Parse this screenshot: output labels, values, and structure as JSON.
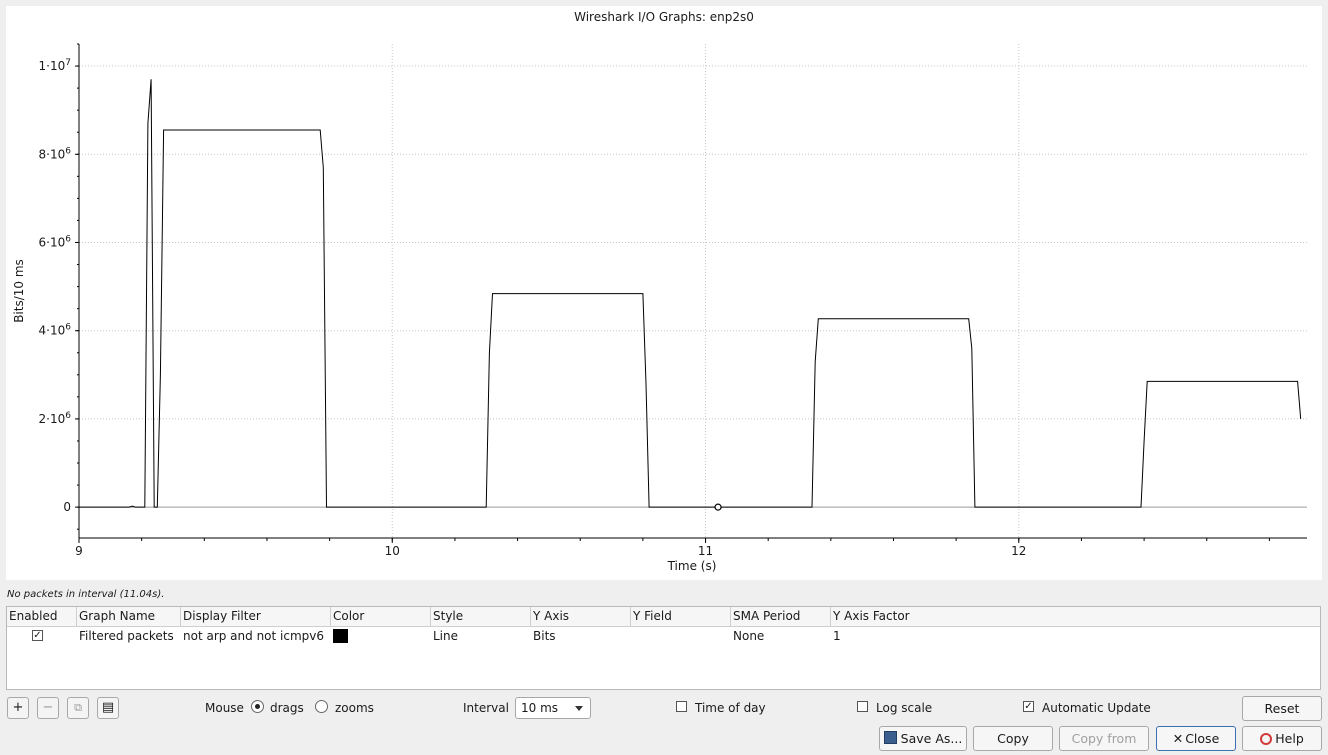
{
  "window": {
    "title": "Wireshark I/O Graphs: enp2s0"
  },
  "chart_data": {
    "type": "line",
    "title": "Wireshark I/O Graphs: enp2s0",
    "xlabel": "Time (s)",
    "ylabel": "Bits/10 ms",
    "xlim": [
      9.0,
      12.92
    ],
    "ylim": [
      -700000,
      10500000
    ],
    "x_ticks": [
      9,
      10,
      11,
      12
    ],
    "x_tick_labels": [
      "9",
      "10",
      "11",
      "12"
    ],
    "y_ticks": [
      0,
      2000000,
      4000000,
      6000000,
      8000000,
      10000000
    ],
    "y_tick_labels": [
      {
        "base": "0",
        "exp": ""
      },
      {
        "base": "2·10",
        "exp": "6"
      },
      {
        "base": "4·10",
        "exp": "6"
      },
      {
        "base": "6·10",
        "exp": "6"
      },
      {
        "base": "8·10",
        "exp": "6"
      },
      {
        "base": "1·10",
        "exp": "7"
      }
    ],
    "grid": true,
    "series": [
      {
        "name": "Filtered packets",
        "color": "#000000",
        "x": [
          9.0,
          9.16,
          9.17,
          9.18,
          9.21,
          9.22,
          9.23,
          9.24,
          9.25,
          9.26,
          9.27,
          9.28,
          9.29,
          9.77,
          9.78,
          9.79,
          10.3,
          10.31,
          10.32,
          10.8,
          10.81,
          10.82,
          11.34,
          11.35,
          11.36,
          11.84,
          11.85,
          11.86,
          12.39,
          12.4,
          12.41,
          12.89,
          12.9
        ],
        "y": [
          0,
          0,
          20000,
          0,
          0,
          8700000,
          9700000,
          0,
          0,
          3000000,
          8550000,
          8550000,
          8550000,
          8550000,
          7700000,
          0,
          0,
          3500000,
          4840000,
          4840000,
          2800000,
          0,
          0,
          3300000,
          4270000,
          4270000,
          3600000,
          0,
          0,
          1500000,
          2850000,
          2850000,
          2000000
        ]
      }
    ],
    "marker": {
      "x": 11.04,
      "y": 0
    }
  },
  "status_text": "No packets in interval (11.04s).",
  "table": {
    "columns": [
      "Enabled",
      "Graph Name",
      "Display Filter",
      "Color",
      "Style",
      "Y Axis",
      "Y Field",
      "SMA Period",
      "Y Axis Factor"
    ],
    "rows": [
      {
        "enabled": true,
        "check_mark": "✓",
        "name": "Filtered packets",
        "filter": "not arp and not icmpv6",
        "color": "#000000",
        "style": "Line",
        "y_axis": "Bits",
        "y_field": "",
        "sma": "None",
        "factor": "1"
      }
    ]
  },
  "toolbar": {
    "add": "+",
    "remove": "−",
    "copy": "⧉",
    "clear": "▤"
  },
  "mouse": {
    "label": "Mouse",
    "drags": "drags",
    "zooms": "zooms",
    "selected": "drags"
  },
  "interval": {
    "label": "Interval",
    "value": "10 ms"
  },
  "time_of_day": {
    "label": "Time of day",
    "checked": false
  },
  "log_scale": {
    "label": "Log scale",
    "checked": false
  },
  "auto_update": {
    "label": "Automatic Update",
    "checked": true,
    "mark": "✓"
  },
  "buttons": {
    "reset": "Reset",
    "save_as": "Save As...",
    "copy": "Copy",
    "copy_from": "Copy from",
    "close": "Close",
    "help": "Help"
  }
}
